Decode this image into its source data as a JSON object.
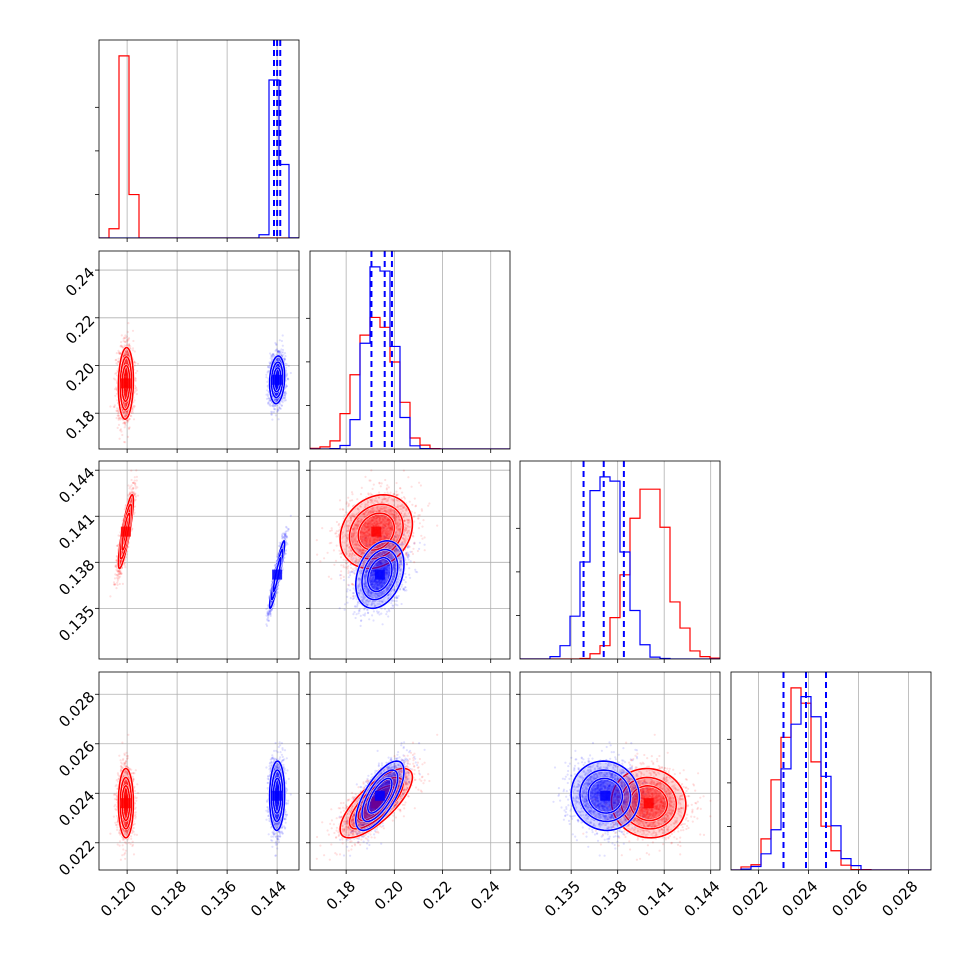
{
  "colors": {
    "series_a": "#ff0000",
    "series_b": "#0000ff",
    "grid": "#b0b0b0"
  },
  "chart_data": {
    "type": "corner",
    "grid": true,
    "parameters": [
      {
        "ticks": [
          0.12,
          0.128,
          0.136,
          0.144
        ],
        "tick_labels": [
          "0.120",
          "0.128",
          "0.136",
          "0.144"
        ],
        "lim": [
          0.1155,
          0.1475
        ]
      },
      {
        "ticks": [
          0.18,
          0.2,
          0.22,
          0.24
        ],
        "tick_labels": [
          "0.18",
          "0.20",
          "0.22",
          "0.24"
        ],
        "lim": [
          0.165,
          0.248
        ]
      },
      {
        "ticks": [
          0.135,
          0.138,
          0.141,
          0.144
        ],
        "tick_labels": [
          "0.135",
          "0.138",
          "0.141",
          "0.144"
        ],
        "lim": [
          0.1317,
          0.1446
        ]
      },
      {
        "ticks": [
          0.022,
          0.024,
          0.026,
          0.028
        ],
        "tick_labels": [
          "0.022",
          "0.024",
          "0.026",
          "0.028"
        ],
        "lim": [
          0.0209,
          0.0289
        ]
      }
    ],
    "series": [
      {
        "color": "#ff0000",
        "mean": [
          0.1198,
          0.1925,
          0.14,
          0.0236
        ],
        "std": [
          0.0006,
          0.0075,
          0.0012,
          0.0007
        ],
        "correlation": [
          [
            1.0,
            0.1,
            0.85,
            0.0
          ],
          [
            0.1,
            1.0,
            0.2,
            0.75
          ],
          [
            0.85,
            0.2,
            1.0,
            -0.05
          ],
          [
            0.0,
            0.75,
            -0.05,
            1.0
          ]
        ]
      },
      {
        "color": "#0000ff",
        "mean": [
          0.144,
          0.194,
          0.1372,
          0.0239
        ],
        "std": [
          0.0006,
          0.005,
          0.0011,
          0.0007
        ],
        "correlation": [
          [
            1.0,
            0.15,
            0.93,
            0.05
          ],
          [
            0.15,
            1.0,
            0.3,
            0.7
          ],
          [
            0.93,
            0.3,
            1.0,
            -0.05
          ],
          [
            0.05,
            0.7,
            -0.05,
            1.0
          ]
        ],
        "quantile_lines": [
          [
            0.1435,
            0.144,
            0.1445
          ],
          [
            0.1905,
            0.196,
            0.199
          ],
          [
            0.1358,
            0.1371,
            0.1384
          ],
          [
            0.023,
            0.0239,
            0.0247
          ]
        ]
      }
    ]
  }
}
